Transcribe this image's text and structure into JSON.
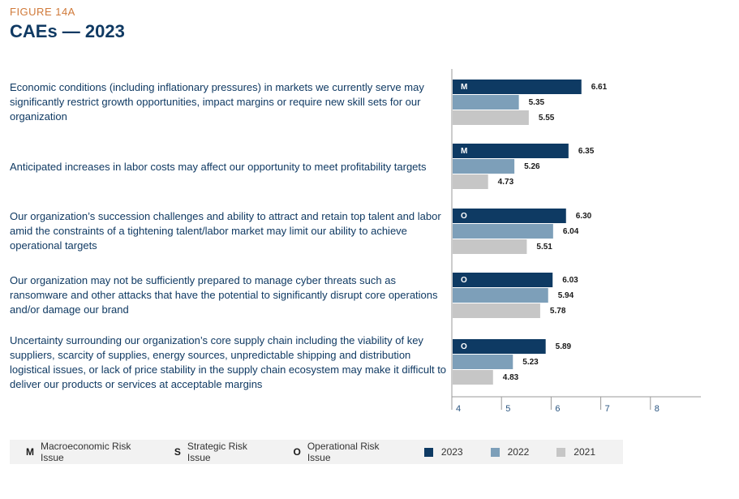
{
  "header": {
    "figure_label": "FIGURE 14A",
    "title": "CAEs — 2023"
  },
  "colors": {
    "y2023": "#0e3a63",
    "y2022": "#7d9fb9",
    "y2021": "#c6c6c6",
    "title": "#103a63",
    "figure_label": "#d07a3a"
  },
  "legend": {
    "macro_code": "M",
    "macro_label": "Macroeconomic Risk Issue",
    "strategic_code": "S",
    "strategic_label": "Strategic Risk Issue",
    "operational_code": "O",
    "operational_label": "Operational Risk Issue",
    "y2023": "2023",
    "y2022": "2022",
    "y2021": "2021"
  },
  "chart_data": {
    "type": "bar",
    "orientation": "horizontal",
    "title": "CAEs — 2023",
    "xlim": [
      4,
      9
    ],
    "xticks": [
      "4",
      "5",
      "6",
      "7",
      "8"
    ],
    "series_names": [
      "2023",
      "2022",
      "2021"
    ],
    "categories": [
      {
        "label": "Economic conditions (including inflationary pressures) in markets we currently serve may significantly restrict growth opportunities, impact margins or require new skill sets for our organization",
        "code": "M",
        "values": [
          6.61,
          5.35,
          5.55
        ],
        "labels": [
          "6.61",
          "5.35",
          "5.55"
        ]
      },
      {
        "label": "Anticipated increases in labor costs may affect our opportunity to meet profitability targets",
        "code": "M",
        "values": [
          6.35,
          5.26,
          4.73
        ],
        "labels": [
          "6.35",
          "5.26",
          "4.73"
        ]
      },
      {
        "label": "Our organization’s succession challenges and ability to attract and retain top talent and labor amid the constraints of a tightening talent/labor market may limit our ability to achieve operational targets",
        "code": "O",
        "values": [
          6.3,
          6.04,
          5.51
        ],
        "labels": [
          "6.30",
          "6.04",
          "5.51"
        ]
      },
      {
        "label": "Our organization may not be sufficiently prepared to manage cyber threats such as ransomware and other attacks that have the potential to significantly disrupt core operations and/or damage our brand",
        "code": "O",
        "values": [
          6.03,
          5.94,
          5.78
        ],
        "labels": [
          "6.03",
          "5.94",
          "5.78"
        ]
      },
      {
        "label": "Uncertainty surrounding our organization’s core supply chain including the viability of key suppliers, scarcity of supplies, energy sources, unpredictable shipping and distribution logistical issues, or lack of price stability in the supply chain ecosystem may make it difficult to deliver our products or services at acceptable margins",
        "code": "O",
        "values": [
          5.89,
          5.23,
          4.83
        ],
        "labels": [
          "5.89",
          "5.23",
          "4.83"
        ]
      }
    ]
  }
}
